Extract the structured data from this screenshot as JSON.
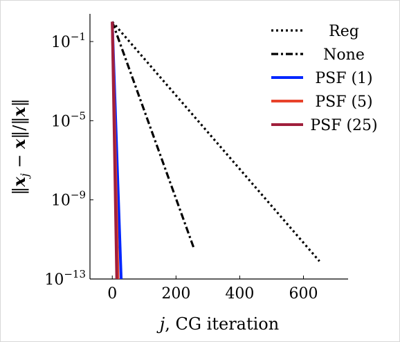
{
  "chart_data": {
    "type": "line",
    "title": "",
    "xlabel": "j, CG iteration",
    "ylabel": "‖x_j − x‖/‖x‖",
    "xlim": [
      -70,
      740
    ],
    "ylim_log10": [
      -13,
      0.4
    ],
    "y_scale": "log",
    "x_ticks": [
      {
        "value": 0,
        "label": "0"
      },
      {
        "value": 200,
        "label": "200"
      },
      {
        "value": 400,
        "label": "400"
      },
      {
        "value": 600,
        "label": "600"
      }
    ],
    "y_ticks": [
      {
        "exp": -1,
        "label": "10",
        "sup": "−1"
      },
      {
        "exp": -5,
        "label": "10",
        "sup": "−5"
      },
      {
        "exp": -9,
        "label": "10",
        "sup": "−9"
      },
      {
        "exp": -13,
        "label": "10",
        "sup": "−13"
      }
    ],
    "grid": false,
    "legend_position": "top-right",
    "series": [
      {
        "name": "Reg",
        "color": "#000000",
        "style": "dotted",
        "x": [
          0,
          650
        ],
        "y_log10": [
          0,
          -12.1
        ]
      },
      {
        "name": "None",
        "color": "#000000",
        "style": "dashdot",
        "x": [
          0,
          255
        ],
        "y_log10": [
          0,
          -11.4
        ]
      },
      {
        "name": "PSF (1)",
        "color": "#0026ff",
        "style": "solid",
        "x": [
          0,
          28
        ],
        "y_log10": [
          0,
          -13
        ]
      },
      {
        "name": "PSF (5)",
        "color": "#e8432b",
        "style": "solid",
        "x": [
          0,
          18
        ],
        "y_log10": [
          0,
          -13
        ]
      },
      {
        "name": "PSF (25)",
        "color": "#a01f3c",
        "style": "solid",
        "x": [
          0,
          14
        ],
        "y_log10": [
          0,
          -13
        ]
      }
    ]
  }
}
